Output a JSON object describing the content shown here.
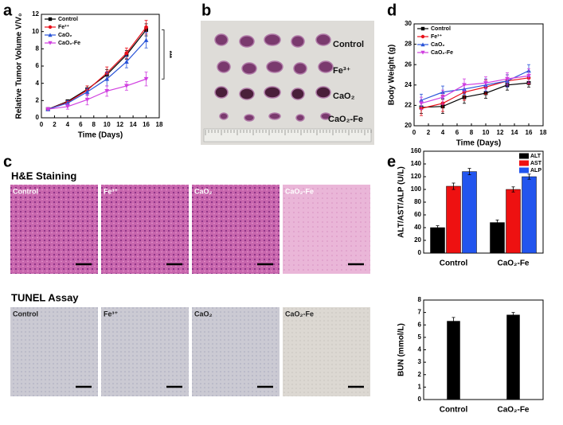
{
  "panel_labels": [
    "a",
    "b",
    "c",
    "d",
    "e"
  ],
  "photo_b": {
    "labels": [
      "Control",
      "Fe³⁺",
      "CaO₂",
      "CaO₂-Fe"
    ]
  },
  "panel_c": {
    "he_title": "H&E Staining",
    "tunel_title": "TUNEL Assay",
    "he_labels": [
      "Control",
      "Fe³⁺",
      "CaO₂",
      "CaO₂-Fe"
    ],
    "tunel_labels": [
      "Control",
      "Fe³⁺",
      "CaO₂",
      "CaO₂-Fe"
    ]
  },
  "chart_data": [
    {
      "type": "line",
      "ylabel": "Relative Tumor Volume V/V₀",
      "xlabel": "Time (Days)",
      "annotation": "***",
      "legend": "upper-left",
      "xlim": [
        0,
        18
      ],
      "xticks": [
        0,
        2,
        4,
        6,
        8,
        10,
        12,
        14,
        16,
        18
      ],
      "ylim": [
        0,
        12
      ],
      "yticks": [
        0,
        2,
        4,
        6,
        8,
        10,
        12
      ],
      "x": [
        1,
        4,
        7,
        10,
        13,
        16
      ],
      "series": [
        {
          "name": "Control",
          "color": "#000000",
          "marker": "square",
          "values": [
            1,
            1.9,
            3.3,
            5.0,
            7.3,
            10.2
          ],
          "errors": [
            0.05,
            0.2,
            0.4,
            0.6,
            0.5,
            0.7
          ]
        },
        {
          "name": "Fe³⁺",
          "color": "#e8101a",
          "marker": "circle",
          "values": [
            1,
            1.8,
            3.2,
            5.2,
            7.5,
            10.5
          ],
          "errors": [
            0.05,
            0.2,
            0.5,
            0.7,
            0.6,
            0.8
          ]
        },
        {
          "name": "CaO₂",
          "color": "#2a55d8",
          "marker": "triangle",
          "values": [
            1,
            1.7,
            3.0,
            4.5,
            6.5,
            9.0
          ],
          "errors": [
            0.05,
            0.3,
            0.4,
            0.8,
            0.7,
            0.9
          ]
        },
        {
          "name": "CaO₂-Fe",
          "color": "#d040e0",
          "marker": "down-triangle",
          "values": [
            1,
            1.3,
            2.1,
            3.1,
            3.7,
            4.5
          ],
          "errors": [
            0.05,
            0.3,
            0.6,
            0.6,
            0.5,
            0.8
          ]
        }
      ]
    },
    {
      "type": "line",
      "ylabel": "Body Weight (g)",
      "xlabel": "Time (Days)",
      "legend": "upper-left",
      "xlim": [
        0,
        18
      ],
      "xticks": [
        0,
        2,
        4,
        6,
        8,
        10,
        12,
        14,
        16,
        18
      ],
      "ylim": [
        20,
        30
      ],
      "yticks": [
        20,
        22,
        24,
        26,
        28,
        30
      ],
      "x": [
        1,
        4,
        7,
        10,
        13,
        16
      ],
      "series": [
        {
          "name": "Control",
          "color": "#000000",
          "marker": "square",
          "values": [
            21.8,
            21.9,
            22.8,
            23.2,
            24.0,
            24.2
          ],
          "errors": [
            0.6,
            0.7,
            0.6,
            0.5,
            0.5,
            0.4
          ]
        },
        {
          "name": "Fe³⁺",
          "color": "#e8101a",
          "marker": "circle",
          "values": [
            21.7,
            22.2,
            23.3,
            23.8,
            24.4,
            24.7
          ],
          "errors": [
            0.7,
            0.8,
            0.8,
            0.7,
            0.6,
            0.6
          ]
        },
        {
          "name": "CaO₂",
          "color": "#2a55d8",
          "marker": "triangle",
          "values": [
            22.5,
            23.3,
            23.6,
            24.0,
            24.4,
            25.4
          ],
          "errors": [
            0.6,
            0.6,
            0.5,
            0.6,
            0.6,
            0.6
          ]
        },
        {
          "name": "CaO₂-Fe",
          "color": "#d040e0",
          "marker": "down-triangle",
          "values": [
            22.2,
            22.8,
            24.0,
            24.2,
            24.6,
            24.9
          ],
          "errors": [
            0.6,
            0.7,
            0.6,
            0.6,
            0.6,
            0.7
          ]
        }
      ]
    },
    {
      "type": "bar",
      "ylabel": "ALT/AST/ALP (U/L)",
      "legend": "upper-right",
      "categories": [
        "Control",
        "CaO₂-Fe"
      ],
      "ylim": [
        0,
        160
      ],
      "yticks": [
        0,
        20,
        40,
        60,
        80,
        100,
        120,
        140,
        160
      ],
      "series": [
        {
          "name": "ALT",
          "color": "#000000",
          "values": [
            40,
            48
          ],
          "errors": [
            3,
            4
          ]
        },
        {
          "name": "AST",
          "color": "#ee1111",
          "values": [
            105,
            100
          ],
          "errors": [
            5,
            4
          ]
        },
        {
          "name": "ALP",
          "color": "#2255ee",
          "values": [
            128,
            120
          ],
          "errors": [
            5,
            4
          ]
        }
      ]
    },
    {
      "type": "bar",
      "ylabel": "BUN (mmol/L)",
      "categories": [
        "Control",
        "CaO₂-Fe"
      ],
      "ylim": [
        0,
        8
      ],
      "yticks": [
        0,
        1,
        2,
        3,
        4,
        5,
        6,
        7,
        8
      ],
      "series": [
        {
          "color": "#000000",
          "values": [
            6.3,
            6.8
          ],
          "errors": [
            0.3,
            0.2
          ]
        }
      ]
    }
  ]
}
